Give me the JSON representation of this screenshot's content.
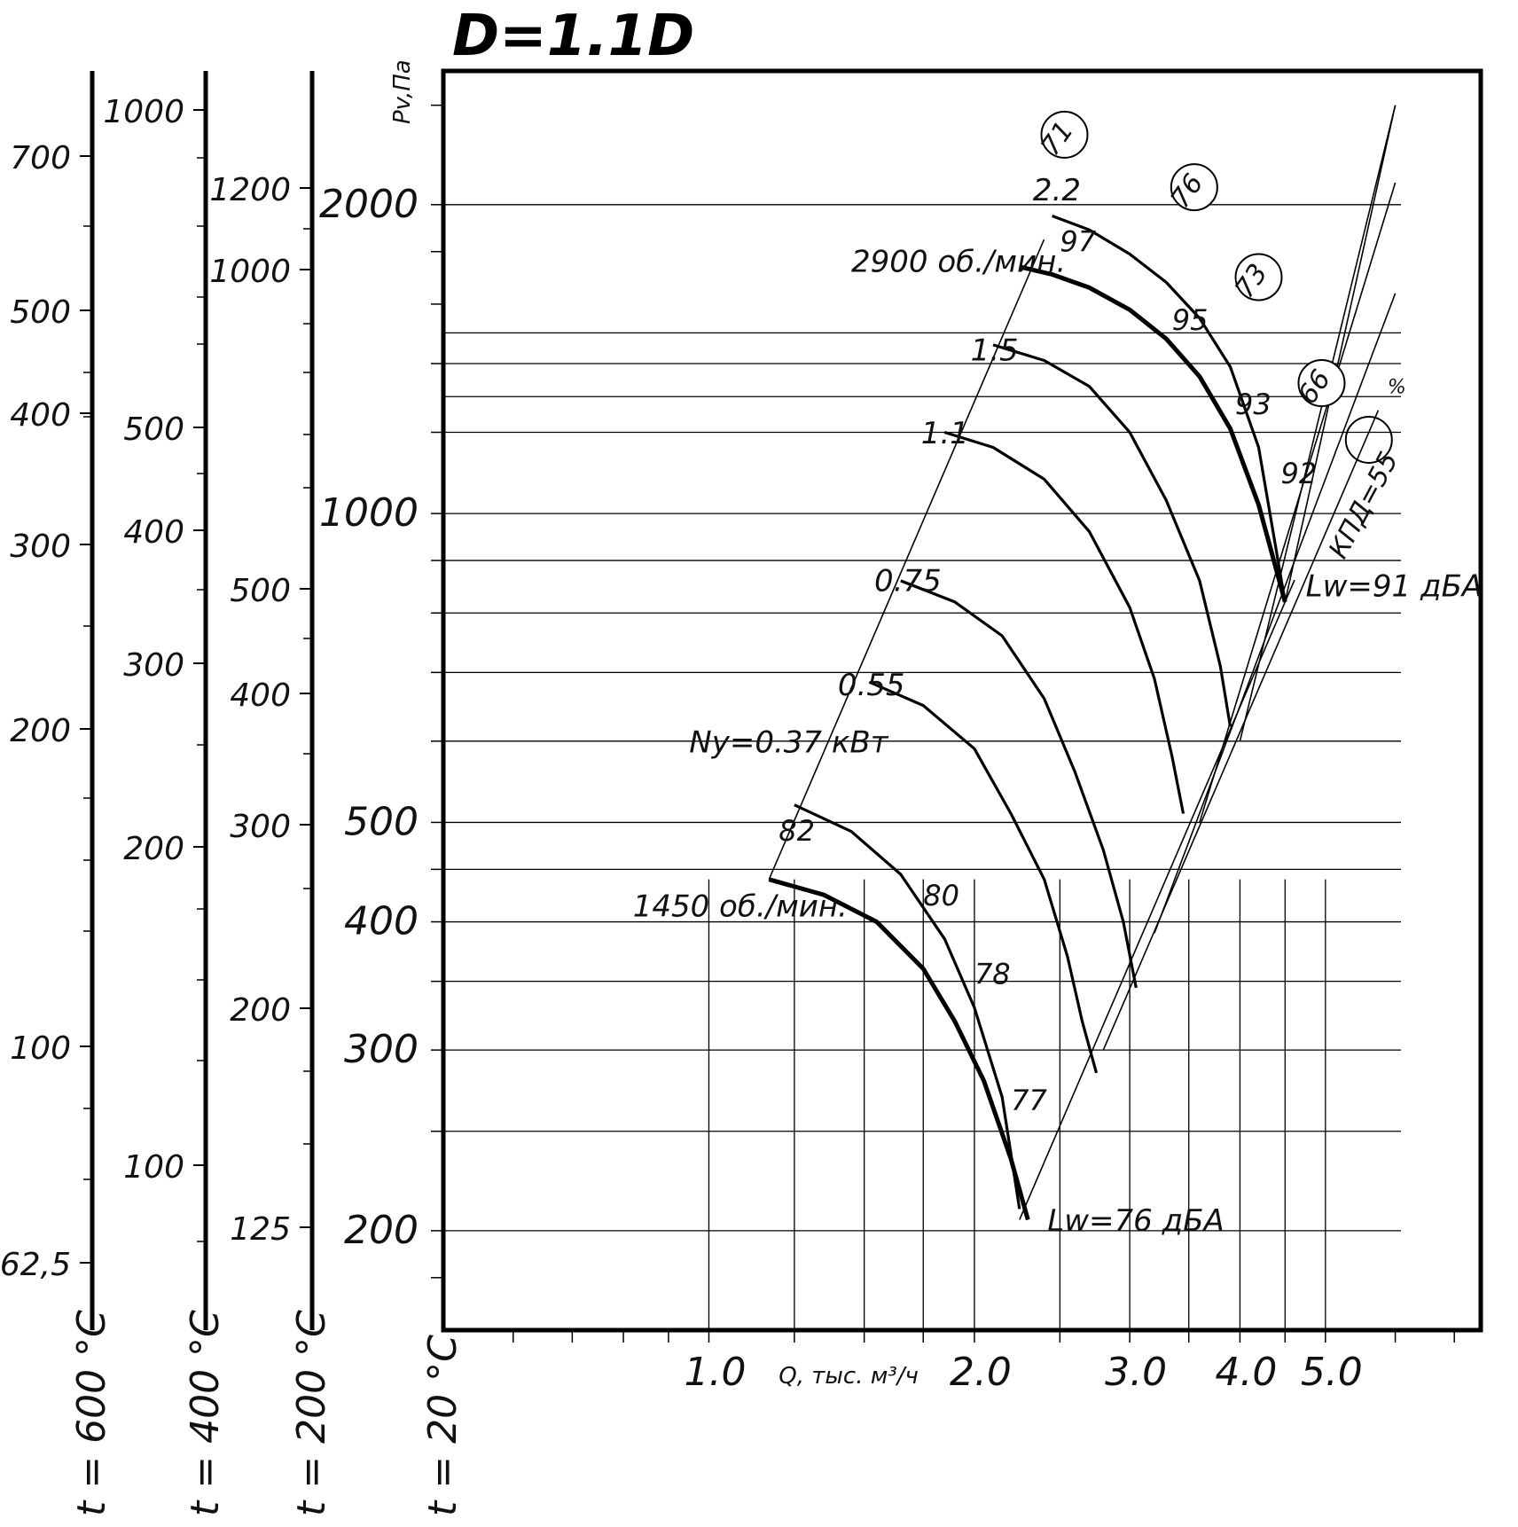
{
  "chart_data": {
    "type": "line",
    "title": "D=1.1D",
    "xlabel": "Q, тыс. м³/ч",
    "ylabel": "Pv,Па",
    "x_scale": "log",
    "y_scale": "log",
    "xlim": [
      0.5,
      7.5
    ],
    "ylim": [
      160,
      2700
    ],
    "x_tick_labels": [
      "1.0",
      "2.0",
      "3.0",
      "4.0",
      "5.0"
    ],
    "y_tick_labels": [
      "2000",
      "1000",
      "500",
      "400",
      "300",
      "200"
    ],
    "temperature_scales": [
      {
        "label": "t = 600 °C",
        "ticks": [
          "700",
          "500",
          "400",
          "300",
          "200",
          "100",
          "62,5"
        ]
      },
      {
        "label": "t = 400 °C",
        "ticks": [
          "1000",
          "500",
          "400",
          "300",
          "200",
          "100"
        ]
      },
      {
        "label": "t = 200 °C",
        "ticks": [
          "1200",
          "1000",
          "500",
          "400",
          "300",
          "200",
          "125"
        ]
      },
      {
        "label": "t = 20 °C",
        "ticks": []
      }
    ],
    "series": [
      {
        "name": "2900 об./мин.",
        "x": [
          2.25,
          2.45,
          2.7,
          3.0,
          3.3,
          3.6,
          3.9,
          4.2,
          4.5
        ],
        "y": [
          1740,
          1710,
          1660,
          1580,
          1480,
          1360,
          1210,
          1020,
          820
        ]
      },
      {
        "name": "1450 об./мин.",
        "x": [
          1.17,
          1.35,
          1.55,
          1.75,
          1.9,
          2.05,
          2.2,
          2.3
        ],
        "y": [
          440,
          425,
          400,
          360,
          320,
          280,
          235,
          205
        ]
      },
      {
        "name": "2.2",
        "x": [
          2.45,
          2.7,
          3.0,
          3.3,
          3.6,
          3.9,
          4.2,
          4.5
        ],
        "y": [
          1950,
          1890,
          1790,
          1680,
          1550,
          1390,
          1160,
          820
        ]
      },
      {
        "name": "1.5",
        "x": [
          2.1,
          2.4,
          2.7,
          3.0,
          3.3,
          3.6,
          3.8,
          3.9
        ],
        "y": [
          1460,
          1410,
          1330,
          1200,
          1030,
          860,
          710,
          620
        ]
      },
      {
        "name": "1.1",
        "x": [
          1.85,
          2.1,
          2.4,
          2.7,
          3.0,
          3.2,
          3.35,
          3.45
        ],
        "y": [
          1200,
          1160,
          1080,
          960,
          810,
          690,
          580,
          510
        ]
      },
      {
        "name": "0.75",
        "x": [
          1.65,
          1.9,
          2.15,
          2.4,
          2.6,
          2.8,
          2.95,
          3.05
        ],
        "y": [
          860,
          820,
          760,
          660,
          560,
          470,
          400,
          345
        ]
      },
      {
        "name": "0.55",
        "x": [
          1.52,
          1.75,
          2.0,
          2.2,
          2.4,
          2.55,
          2.65,
          2.75
        ],
        "y": [
          685,
          650,
          590,
          510,
          440,
          370,
          320,
          285
        ]
      },
      {
        "name": "0.37",
        "x": [
          1.25,
          1.45,
          1.65,
          1.85,
          2.0,
          2.15,
          2.25
        ],
        "y": [
          520,
          490,
          445,
          385,
          330,
          270,
          210
        ]
      }
    ],
    "power_labels": [
      "2.2",
      "1.5",
      "1.1",
      "0.75",
      "0.55",
      "Ny=0.37 кВт"
    ],
    "speed_labels": [
      "2900 об./мин.",
      "1450 об./мин."
    ],
    "efficiency_labels": [
      "71",
      "76",
      "73",
      "66",
      "КПД=55",
      "%"
    ],
    "noise_labels": [
      "97",
      "95",
      "93",
      "92",
      "82",
      "80",
      "78",
      "77",
      "Lw=91 дБА",
      "Lw=76 дБА"
    ],
    "grid": true
  }
}
